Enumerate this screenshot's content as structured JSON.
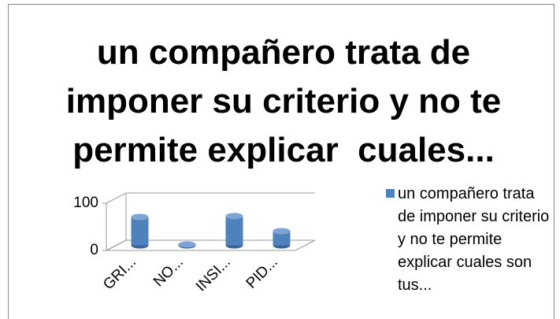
{
  "chart_data": {
    "type": "bar3d",
    "title": "un compañero trata de imponer su criterio y no te permite explicar  cuales...",
    "categories": [
      "GRI...",
      "NO...",
      "INSI...",
      "PID..."
    ],
    "series": [
      {
        "name": "un compañero trata de imponer su criterio y no te permite explicar cuales son tus...",
        "color": "#4f81bd",
        "values": [
          60,
          2,
          62,
          30
        ]
      }
    ],
    "ylim": [
      0,
      100
    ],
    "yticks": [
      0,
      100
    ],
    "grid": true,
    "legend": "right"
  }
}
